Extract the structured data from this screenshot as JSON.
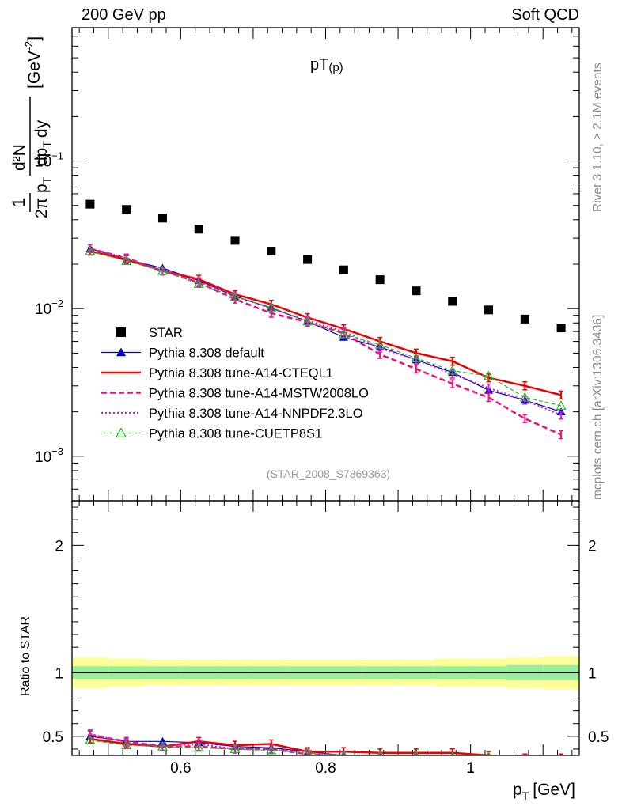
{
  "header": {
    "left": "200 GeV pp",
    "right": "Soft QCD"
  },
  "main_plot": {
    "title_main": "pT",
    "title_sub": "(p)",
    "ylabel_frac_num": "d²N",
    "ylabel_frac_den": "2π p",
    "ylabel_frac_den2": "dp",
    "ylabel_frac_den3": "dy",
    "ylabel_T": "T",
    "ylabel_one": "1",
    "ylabel_unit": "[GeV",
    "ylabel_unit_exp": "-2",
    "ylabel_unit_close": "]",
    "watermark": "(STAR_2008_S7869363)"
  },
  "ratio_plot": {
    "ylabel": "Ratio to STAR",
    "xlabel_p": "p",
    "xlabel_T": "T",
    "xlabel_unit": "[GeV]"
  },
  "side_text": {
    "rivet": "Rivet 3.1.10, ≥ 2.1M events",
    "mcplots": "mcplots.cern.ch [arXiv:1306.3436]"
  },
  "chart_data": {
    "type": "scatter",
    "x": [
      0.475,
      0.525,
      0.575,
      0.625,
      0.675,
      0.725,
      0.775,
      0.825,
      0.875,
      0.925,
      0.975,
      1.025,
      1.075,
      1.125
    ],
    "xlim": [
      0.45,
      1.15
    ],
    "ylim": [
      0.0005,
      0.8
    ],
    "ylog": true,
    "y_ticks": [
      {
        "value": 0.1,
        "base": "10",
        "exp": "−1"
      },
      {
        "value": 0.01,
        "base": "10",
        "exp": "−2"
      },
      {
        "value": 0.001,
        "base": "10",
        "exp": "−3"
      }
    ],
    "x_ticks": [
      {
        "value": 0.6,
        "label": "0.6"
      },
      {
        "value": 0.8,
        "label": "0.8"
      },
      {
        "value": 1.0,
        "label": "1"
      }
    ],
    "ratio_ylim": [
      0.35,
      2.35
    ],
    "ratio_y_ticks": [
      {
        "value": 0.5,
        "label": "0.5"
      },
      {
        "value": 1,
        "label": "1"
      },
      {
        "value": 2,
        "label": "2"
      }
    ],
    "band_inner": [
      0.05,
      0.05,
      0.05,
      0.05,
      0.05,
      0.05,
      0.05,
      0.05,
      0.05,
      0.05,
      0.05,
      0.05,
      0.06,
      0.06
    ],
    "band_outer": [
      0.12,
      0.11,
      0.1,
      0.1,
      0.1,
      0.1,
      0.1,
      0.1,
      0.1,
      0.1,
      0.11,
      0.11,
      0.12,
      0.13
    ],
    "legend_position": "bottom-left",
    "series": [
      {
        "name": "STAR",
        "color": "#000000",
        "style": "data",
        "values": [
          0.051,
          0.047,
          0.041,
          0.0345,
          0.029,
          0.0245,
          0.0215,
          0.0183,
          0.0157,
          0.0132,
          0.0112,
          0.0098,
          0.0085,
          0.0074
        ],
        "ratio": [
          1,
          1,
          1,
          1,
          1,
          1,
          1,
          1,
          1,
          1,
          1,
          1,
          1,
          1
        ]
      },
      {
        "name": "Pythia 8.308 default",
        "color": "#0000cc",
        "style": "solid-thin",
        "marker": "triangle-filled",
        "values": [
          0.0255,
          0.0215,
          0.0188,
          0.0155,
          0.0121,
          0.0101,
          0.0082,
          0.0064,
          0.0055,
          0.0045,
          0.0037,
          0.0028,
          0.0024,
          0.002
        ],
        "ratio": [
          0.5,
          0.46,
          0.46,
          0.45,
          0.42,
          0.41,
          0.38,
          0.35,
          0.35,
          0.34,
          0.33,
          0.29,
          0.28,
          0.27
        ]
      },
      {
        "name": "Pythia 8.308 tune-A14-CTEQL1",
        "color": "#ee0000",
        "style": "solid-thick",
        "values": [
          0.0245,
          0.0215,
          0.018,
          0.0158,
          0.0125,
          0.0107,
          0.0087,
          0.0073,
          0.006,
          0.005,
          0.0044,
          0.0034,
          0.003,
          0.0026
        ],
        "ratio": [
          0.48,
          0.44,
          0.42,
          0.46,
          0.43,
          0.44,
          0.38,
          0.38,
          0.37,
          0.37,
          0.37,
          0.35,
          0.33,
          0.33
        ]
      },
      {
        "name": "Pythia 8.308 tune-A14-MSTW2008LO",
        "color": "#ee1177",
        "style": "dashed",
        "values": [
          0.0255,
          0.022,
          0.018,
          0.015,
          0.0116,
          0.0093,
          0.0081,
          0.0068,
          0.0049,
          0.0039,
          0.0031,
          0.0025,
          0.0018,
          0.0014
        ],
        "ratio": [
          0.51,
          0.46,
          0.42,
          0.42,
          0.4,
          0.4,
          0.36,
          0.35,
          0.32,
          0.3,
          0.28,
          0.26,
          0.22,
          0.19
        ]
      },
      {
        "name": "Pythia 8.308 tune-A14-NNPDF2.3LO",
        "color": "#cc22cc",
        "style": "dotted",
        "values": [
          0.0255,
          0.022,
          0.018,
          0.0152,
          0.0122,
          0.01,
          0.0083,
          0.007,
          0.0054,
          0.0045,
          0.0036,
          0.0029,
          0.0024,
          0.0019
        ],
        "ratio": [
          0.52,
          0.45,
          0.42,
          0.44,
          0.4,
          0.4,
          0.37,
          0.35,
          0.33,
          0.33,
          0.32,
          0.29,
          0.28,
          0.26
        ]
      },
      {
        "name": "Pythia 8.308 tune-CUETP8S1",
        "color": "#22bb22",
        "style": "dashed-thin",
        "marker": "triangle-open",
        "values": [
          0.0245,
          0.021,
          0.018,
          0.0147,
          0.012,
          0.0102,
          0.0082,
          0.0067,
          0.0057,
          0.0046,
          0.0038,
          0.0035,
          0.0025,
          0.0022
        ],
        "ratio": [
          0.47,
          0.43,
          0.42,
          0.41,
          0.4,
          0.39,
          0.37,
          0.35,
          0.35,
          0.35,
          0.34,
          0.34,
          0.3,
          0.3
        ]
      }
    ]
  }
}
